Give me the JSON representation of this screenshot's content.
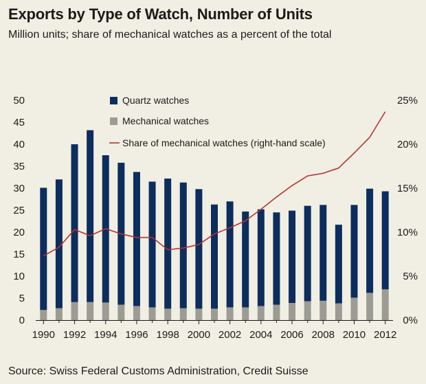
{
  "title": "Exports by Type of Watch, Number of Units",
  "subtitle": "Million units; share of mechanical watches as a percent of the total",
  "source": "Source: Swiss Federal Customs Administration, Credit Suisse",
  "colors": {
    "quartz": "#0c2d5e",
    "mechanical": "#9c9c94",
    "share_line": "#b5332e",
    "background": "#f1efe3"
  },
  "chart_data": {
    "type": "bar",
    "stacked": true,
    "categories": [
      "1990",
      "1991",
      "1992",
      "1993",
      "1994",
      "1995",
      "1996",
      "1997",
      "1998",
      "1999",
      "2000",
      "2001",
      "2002",
      "2003",
      "2004",
      "2005",
      "2006",
      "2007",
      "2008",
      "2009",
      "2010",
      "2011",
      "2012"
    ],
    "x_tick_labels": [
      "1990",
      "1992",
      "1994",
      "1996",
      "1998",
      "2000",
      "2002",
      "2004",
      "2006",
      "2008",
      "2010",
      "2012"
    ],
    "series": [
      {
        "name": "Quartz watches",
        "type": "bar",
        "axis": "left",
        "values": [
          27.8,
          29.3,
          35.9,
          39.1,
          33.5,
          32.3,
          30.5,
          28.6,
          29.6,
          28.6,
          27.2,
          23.7,
          24.1,
          21.8,
          22.0,
          21.0,
          21.0,
          21.7,
          21.8,
          17.9,
          21.1,
          23.7,
          22.3
        ]
      },
      {
        "name": "Mechanical watches",
        "type": "bar",
        "axis": "left",
        "values": [
          2.3,
          2.7,
          4.1,
          4.1,
          4.0,
          3.5,
          3.2,
          2.9,
          2.6,
          2.7,
          2.6,
          2.6,
          2.9,
          2.9,
          3.2,
          3.5,
          3.9,
          4.3,
          4.4,
          3.8,
          5.1,
          6.2,
          7.0
        ]
      },
      {
        "name": "Share of mechanical watches (right-hand scale)",
        "type": "line",
        "axis": "right",
        "values": [
          7.3,
          8.3,
          10.3,
          9.6,
          10.4,
          9.8,
          9.4,
          9.4,
          8.0,
          8.2,
          8.6,
          9.8,
          10.5,
          11.3,
          12.6,
          14.0,
          15.3,
          16.4,
          16.7,
          17.3,
          19.0,
          20.8,
          23.7
        ]
      }
    ],
    "y_left": {
      "min": 0,
      "max": 50,
      "ticks": [
        "0",
        "5",
        "10",
        "15",
        "20",
        "25",
        "30",
        "35",
        "40",
        "45",
        "50"
      ]
    },
    "y_right": {
      "min": 0,
      "max": 25,
      "ticks": [
        "0%",
        "5%",
        "10%",
        "15%",
        "20%",
        "25%"
      ]
    },
    "legend": [
      "Quartz watches",
      "Mechanical watches",
      "Share of mechanical watches (right-hand scale)"
    ],
    "legend_position": "top-center",
    "grid": false
  }
}
